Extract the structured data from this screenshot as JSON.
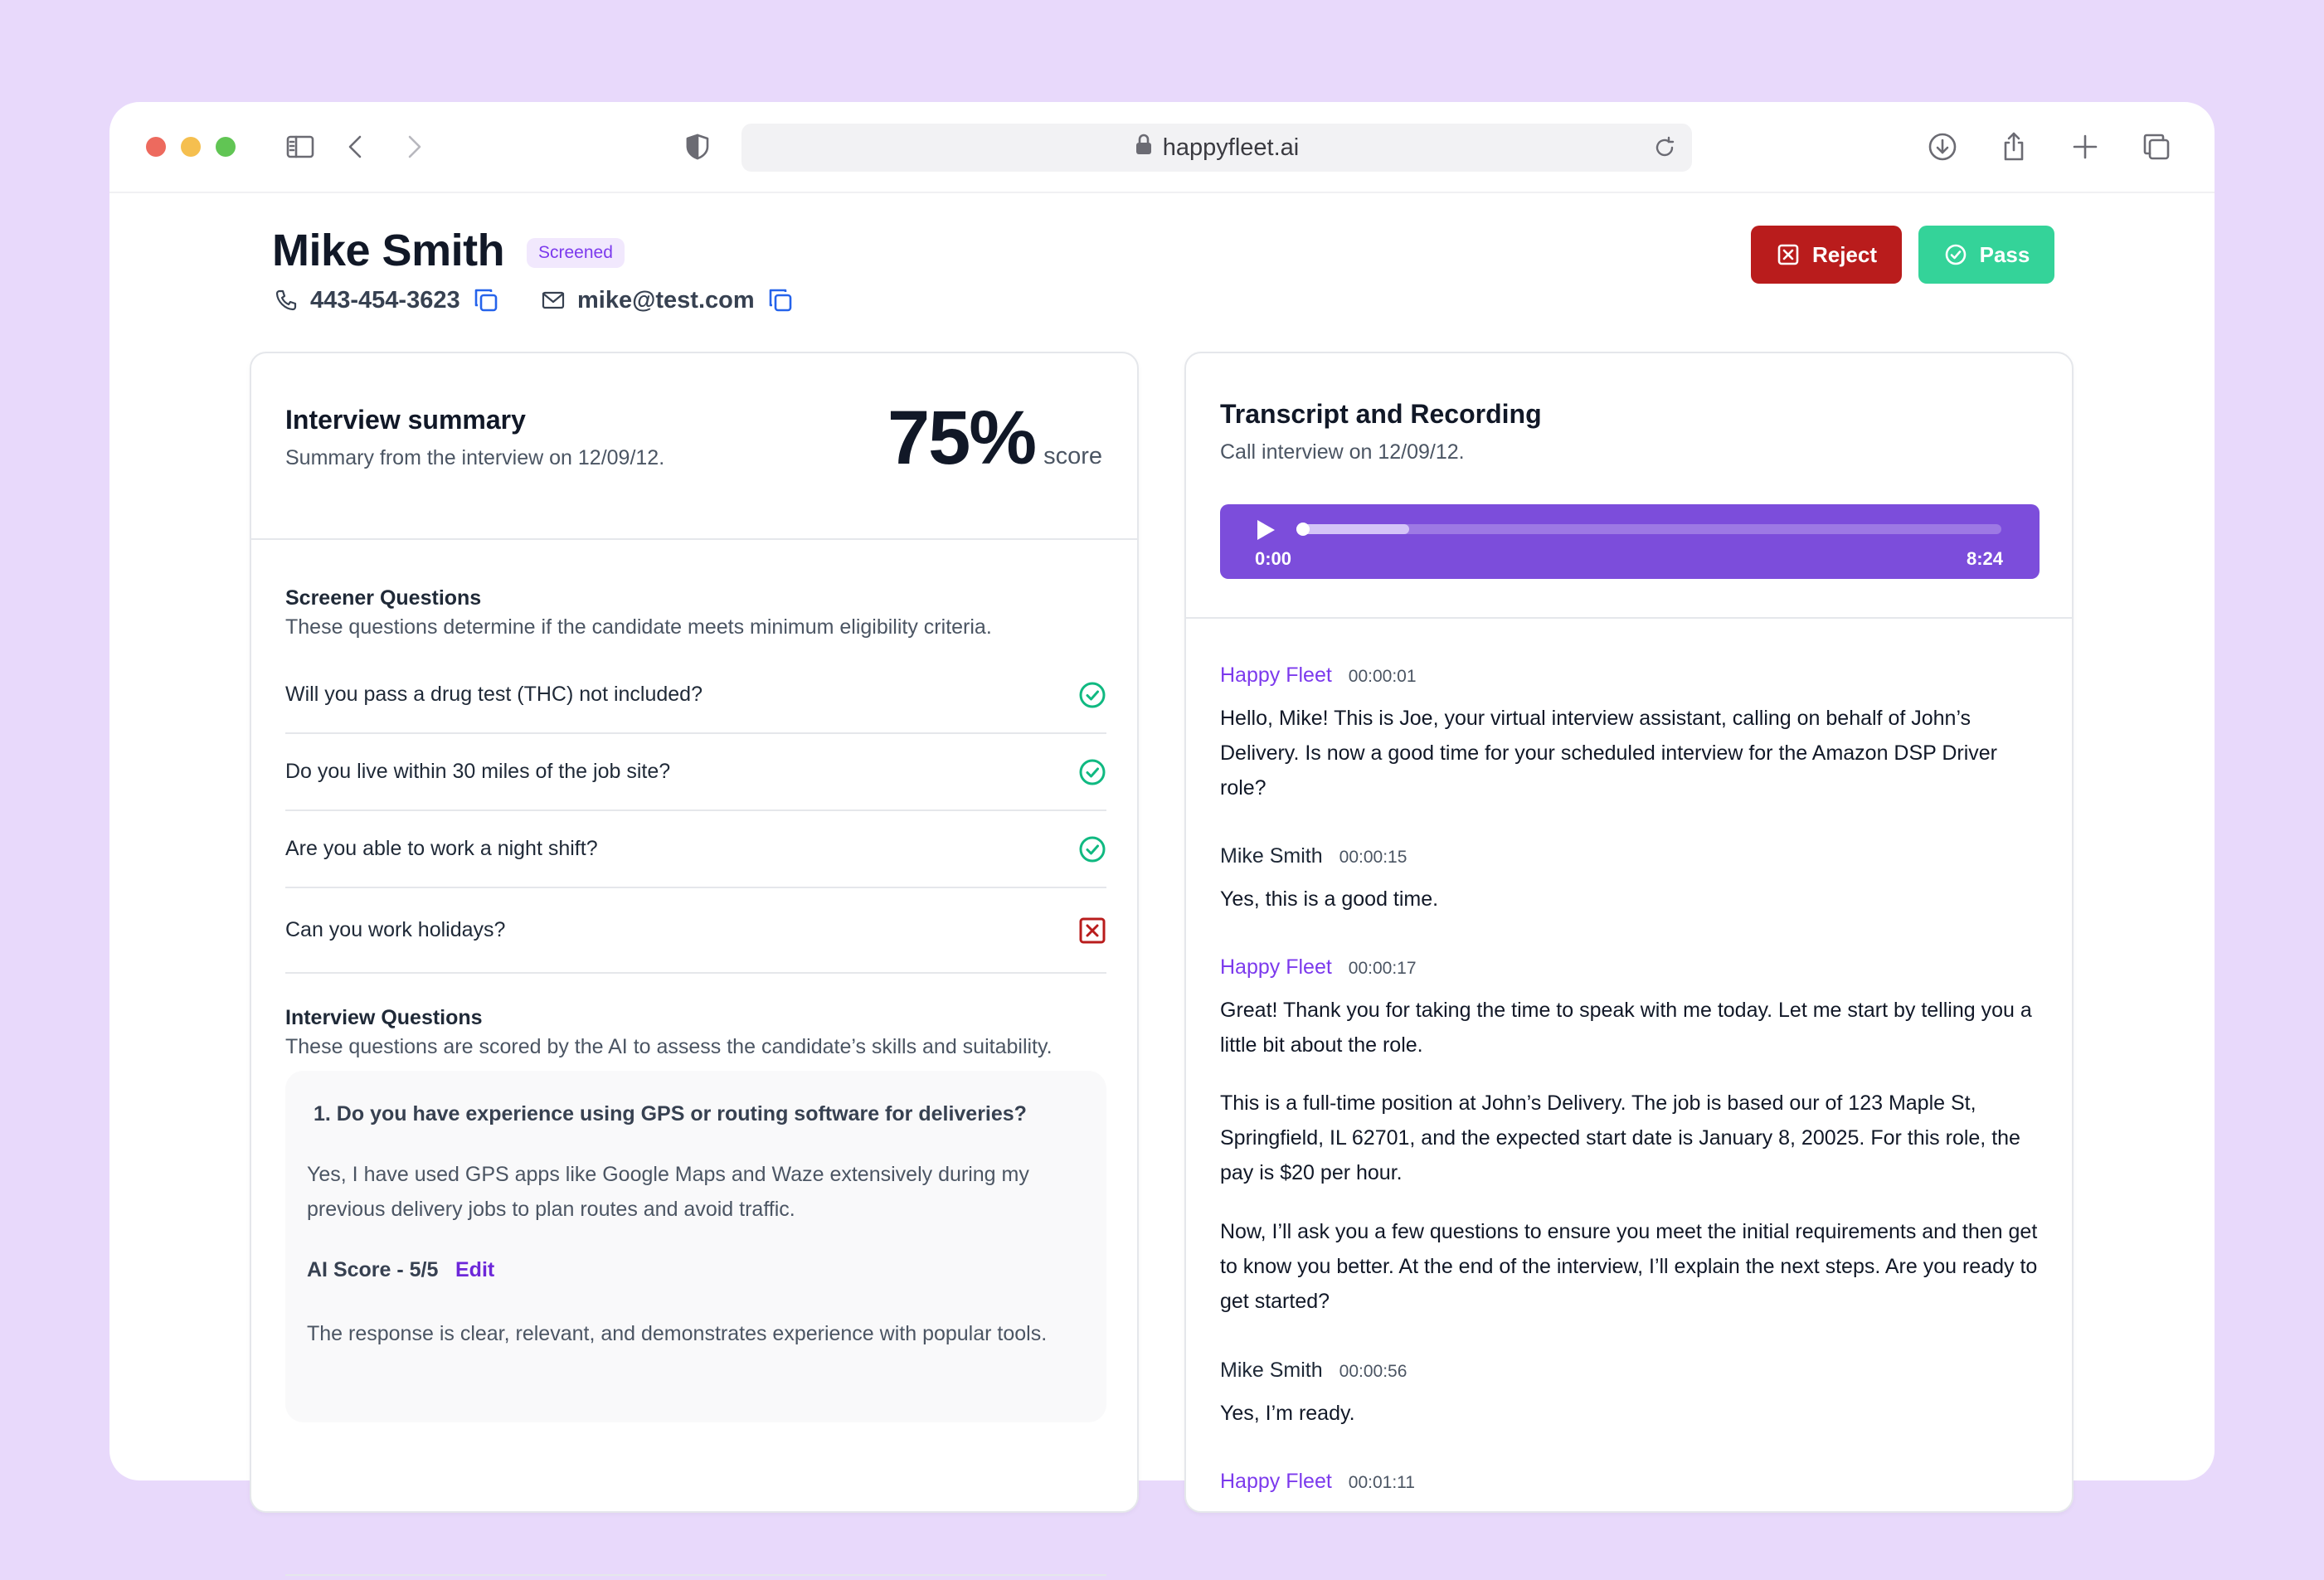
{
  "browser": {
    "url": "happyfleet.ai"
  },
  "candidate": {
    "name": "Mike Smith",
    "status": "Screened",
    "phone": "443-454-3623",
    "email": "mike@test.com"
  },
  "actions": {
    "reject_label": "Reject",
    "pass_label": "Pass"
  },
  "summary": {
    "title": "Interview summary",
    "subtitle": "Summary from the interview on 12/09/12.",
    "score_value": "75%",
    "score_label": "score",
    "screener": {
      "title": "Screener Questions",
      "description": "These questions determine if the candidate meets minimum eligibility criteria.",
      "questions": [
        {
          "text": "Will you pass a drug test (THC) not included?",
          "result": "pass"
        },
        {
          "text": "Do you live within 30 miles of the job site?",
          "result": "pass"
        },
        {
          "text": "Are you able to work a night shift?",
          "result": "pass"
        },
        {
          "text": "Can you work holidays?",
          "result": "fail"
        }
      ]
    },
    "interview": {
      "title": "Interview Questions",
      "description": "These questions are scored by the AI to assess the candidate’s skills and suitability.",
      "items": [
        {
          "question": "1. Do you have experience using GPS or routing software for deliveries?",
          "answer": "Yes, I have used GPS apps like Google Maps and Waze extensively during my previous delivery jobs to plan routes and avoid traffic.",
          "score_label": "AI Score - 5/5",
          "edit_label": "Edit",
          "note": "The response is clear, relevant, and demonstrates experience with popular tools."
        }
      ]
    }
  },
  "transcript": {
    "title": "Transcript and Recording",
    "subtitle": "Call interview on 12/09/12.",
    "player": {
      "current": "0:00",
      "duration": "8:24",
      "buffered_fraction": 0.16
    },
    "messages": [
      {
        "speaker": "Happy Fleet",
        "time": "00:00:01",
        "text": "Hello, Mike! This is Joe, your virtual interview assistant, calling on behalf of John’s Delivery. Is now a good time for your scheduled interview for the Amazon DSP Driver role?"
      },
      {
        "speaker": "Mike Smith",
        "time": "00:00:15",
        "text": "Yes, this is a good time."
      },
      {
        "speaker": "Happy Fleet",
        "time": "00:00:17",
        "text": "Great! Thank you for taking the time to speak with me today. Let me start by telling you a little bit about the role."
      },
      {
        "text": "This is a full-time position at John’s Delivery. The job is based our of 123 Maple St, Springfield, IL 62701, and the expected start date is January 8, 20025. For this role, the pay is $20 per hour."
      },
      {
        "text": "Now, I’ll ask you a few questions to ensure you meet the initial requirements and then get to know you better. At the end of the interview, I’ll explain the next steps. Are you ready to get started?"
      },
      {
        "speaker": "Mike Smith",
        "time": "00:00:56",
        "text": "Yes, I’m ready."
      },
      {
        "speaker": "Happy Fleet",
        "time": "00:01:11",
        "text": ""
      }
    ]
  },
  "colors": {
    "background": "#e8d9fb",
    "accent": "#7c3aed",
    "player": "#7c4ddb",
    "reject": "#b91c1c",
    "pass": "#34d399",
    "check": "#10b981",
    "cross": "#b91c1c",
    "link": "#2563eb"
  },
  "icons": {
    "toolbar_left": [
      "sidebar-icon",
      "back-icon",
      "forward-icon",
      "shield-icon"
    ],
    "toolbar_right": [
      "download-icon",
      "share-icon",
      "new-tab-icon",
      "tabs-overview-icon"
    ],
    "status": [
      "check-circle-icon",
      "x-square-icon"
    ]
  }
}
